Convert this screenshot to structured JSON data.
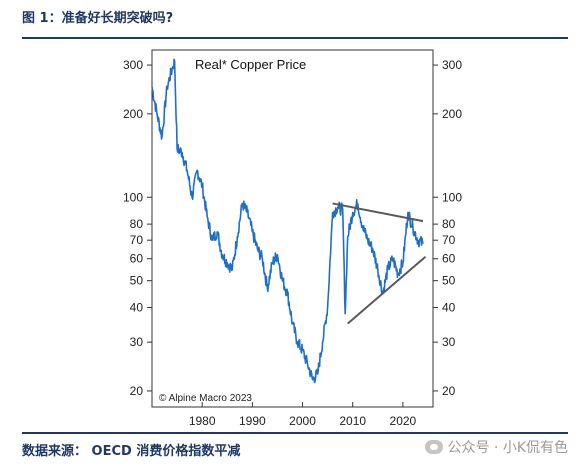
{
  "header": {
    "title": "图 1：准备好长期突破吗?"
  },
  "footer": {
    "source": "数据来源： OECD 消费价格指数平减",
    "watermark": "公众号 · 小K侃有色"
  },
  "colors": {
    "line": "#1f6fc4",
    "trend": "#595959",
    "accent": "#1f3864"
  },
  "chart_data": {
    "type": "line",
    "title": "Real* Copper Price",
    "credit": "© Alpine Macro 2023",
    "yscale": "log",
    "ylim": [
      17.5,
      340
    ],
    "xlim": [
      1970,
      2026
    ],
    "x_ticks": [
      1980,
      1990,
      2000,
      2010,
      2020
    ],
    "y_ticks": [
      20,
      30,
      40,
      50,
      60,
      70,
      80,
      100,
      200,
      300
    ],
    "series": [
      {
        "x": [
          1970,
          1971,
          1972,
          1973,
          1974,
          1974.5,
          1975,
          1976,
          1977,
          1978,
          1979,
          1980,
          1981,
          1982,
          1983,
          1984,
          1985,
          1986,
          1987,
          1988,
          1989,
          1990,
          1991,
          1992,
          1993,
          1994,
          1995,
          1996,
          1997,
          1998,
          1999,
          2000,
          2001,
          2002,
          2003,
          2004,
          2005,
          2006,
          2007,
          2008,
          2008.5,
          2009,
          2010,
          2011,
          2012,
          2013,
          2014,
          2015,
          2016,
          2017,
          2018,
          2019,
          2020,
          2021,
          2022,
          2023,
          2024
        ],
        "y": [
          250,
          200,
          165,
          250,
          290,
          310,
          150,
          145,
          125,
          100,
          125,
          110,
          85,
          70,
          75,
          62,
          58,
          55,
          72,
          95,
          88,
          75,
          65,
          60,
          47,
          58,
          62,
          50,
          45,
          35,
          30,
          28,
          25,
          22,
          23,
          30,
          40,
          88,
          92,
          90,
          38,
          72,
          88,
          95,
          78,
          70,
          65,
          55,
          45,
          55,
          60,
          53,
          58,
          88,
          78,
          70,
          68
        ]
      }
    ],
    "trend_lines": [
      {
        "x": [
          2006,
          2024
        ],
        "y": [
          95,
          82
        ]
      },
      {
        "x": [
          2009,
          2024.5
        ],
        "y": [
          35,
          61
        ]
      }
    ]
  }
}
